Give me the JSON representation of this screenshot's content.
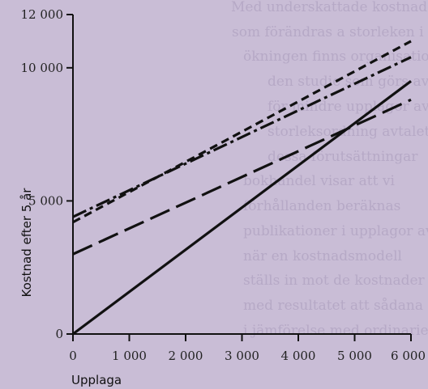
{
  "chart_data": {
    "type": "line",
    "title": "",
    "xlabel": "Upplaga",
    "ylabel": "Kostnad efter 5 år",
    "xlim": [
      0,
      6000
    ],
    "ylim": [
      0,
      12000
    ],
    "x_ticks": [
      0,
      1000,
      2000,
      3000,
      4000,
      5000,
      6000
    ],
    "x_tick_labels": [
      "0",
      "1 000",
      "2 000",
      "3 000",
      "4 000",
      "5 000",
      "6 000"
    ],
    "y_ticks": [
      0,
      5000,
      10000,
      12000
    ],
    "y_tick_labels": [
      "0",
      "5 000",
      "10 000",
      "12 000"
    ],
    "grid": false,
    "legend": "none",
    "series": [
      {
        "style": "solid",
        "x": [
          0,
          6000
        ],
        "y": [
          0,
          9500
        ]
      },
      {
        "style": "long-dash",
        "x": [
          0,
          6000
        ],
        "y": [
          3000,
          8800
        ]
      },
      {
        "style": "short-dash",
        "x": [
          0,
          6000
        ],
        "y": [
          4200,
          11000
        ]
      },
      {
        "style": "dash-dot",
        "x": [
          0,
          6000
        ],
        "y": [
          4400,
          10400
        ]
      }
    ]
  }
}
